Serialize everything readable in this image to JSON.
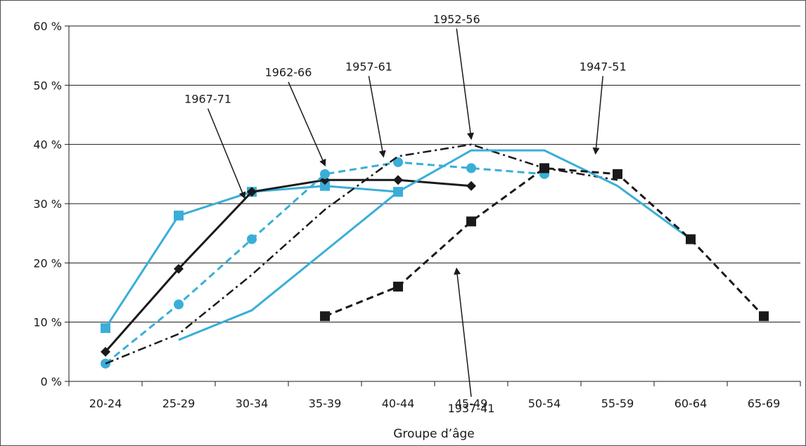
{
  "chart_data": {
    "type": "line",
    "categories": [
      "20-24",
      "25-29",
      "30-34",
      "35-39",
      "40-44",
      "45-49",
      "50-54",
      "55-59",
      "60-64",
      "65-69"
    ],
    "title": "",
    "xlabel": "Groupe d’âge",
    "ylabel": "",
    "ylim": [
      0,
      60
    ],
    "yticks": [
      0,
      10,
      20,
      30,
      40,
      50,
      60
    ],
    "ytick_labels": [
      "0 %",
      "10 %",
      "20 %",
      "30 %",
      "40 %",
      "50 %",
      "60 %"
    ],
    "grid": "horizontal",
    "colors": {
      "blue": "#3aaed8",
      "black": "#1a1a1a"
    },
    "series": [
      {
        "name": "1967-71",
        "x": [
          0,
          1,
          2,
          3,
          4
        ],
        "values": [
          9,
          28,
          32,
          33,
          32
        ],
        "color": "#3aaed8",
        "dash": "solid",
        "marker": "square",
        "width": 3
      },
      {
        "name": "1962-66",
        "x": [
          0,
          1,
          2,
          3,
          4,
          5
        ],
        "values": [
          5,
          19,
          32,
          34,
          34,
          33
        ],
        "color": "#1a1a1a",
        "dash": "solid",
        "marker": "diamond",
        "width": 3
      },
      {
        "name": "1957-61",
        "x": [
          0,
          1,
          2,
          3,
          4,
          5,
          6
        ],
        "values": [
          3,
          13,
          24,
          35,
          37,
          36,
          35
        ],
        "color": "#3aaed8",
        "dash": "dashed",
        "marker": "circle",
        "width": 3
      },
      {
        "name": "1952-56",
        "x": [
          0,
          1,
          2,
          3,
          4,
          5,
          6,
          7
        ],
        "values": [
          3,
          8,
          18,
          29,
          38,
          40,
          36,
          34
        ],
        "color": "#1a1a1a",
        "dash": "dashdot",
        "marker": "none",
        "width": 2.5
      },
      {
        "name": "1947-51",
        "x": [
          1,
          2,
          3,
          4,
          5,
          6,
          7,
          8
        ],
        "values": [
          7,
          12,
          22,
          32,
          39,
          39,
          33,
          24
        ],
        "color": "#3aaed8",
        "dash": "solid",
        "marker": "none",
        "width": 3
      },
      {
        "name": "1937-41",
        "x": [
          3,
          4,
          5,
          6,
          7,
          8,
          9
        ],
        "values": [
          11,
          16,
          27,
          36,
          35,
          24,
          11
        ],
        "color": "#1a1a1a",
        "dash": "dashed",
        "marker": "square",
        "width": 3
      }
    ],
    "annotations": [
      {
        "text": "1967-71",
        "label": [
          1.4,
          47
        ],
        "tip": [
          1.9,
          31
        ]
      },
      {
        "text": "1962-66",
        "label": [
          2.5,
          51.5
        ],
        "tip": [
          3.0,
          36.5
        ]
      },
      {
        "text": "1957-61",
        "label": [
          3.6,
          52.5
        ],
        "tip": [
          3.8,
          38
        ]
      },
      {
        "text": "1952-56",
        "label": [
          4.8,
          60.5
        ],
        "tip": [
          5.0,
          41
        ]
      },
      {
        "text": "1947-51",
        "label": [
          6.8,
          52.5
        ],
        "tip": [
          6.7,
          38.5
        ]
      },
      {
        "text": "1937-41",
        "label": [
          5.0,
          -5.2
        ],
        "tip": [
          4.8,
          19
        ]
      }
    ]
  }
}
